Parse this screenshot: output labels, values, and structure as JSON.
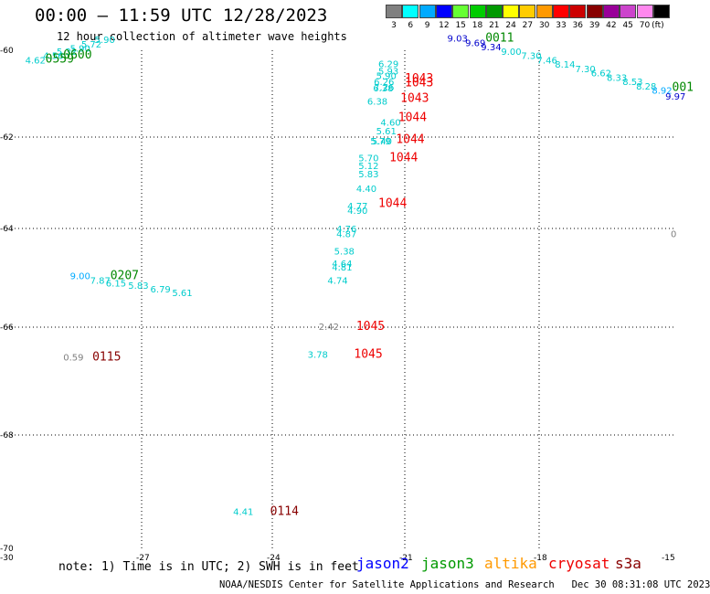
{
  "header": {
    "title": "00:00 – 11:59 UTC 12/28/2023",
    "subtitle": "12 hour collection of altimeter wave heights"
  },
  "legend": {
    "unit": "(ft)",
    "bins": [
      {
        "label": "3",
        "color": "#808080"
      },
      {
        "label": "6",
        "color": "#00ffff"
      },
      {
        "label": "9",
        "color": "#00aaff"
      },
      {
        "label": "12",
        "color": "#0000ff"
      },
      {
        "label": "15",
        "color": "#66ff33"
      },
      {
        "label": "18",
        "color": "#00cc00"
      },
      {
        "label": "21",
        "color": "#009900"
      },
      {
        "label": "24",
        "color": "#ffff00"
      },
      {
        "label": "27",
        "color": "#ffcc00"
      },
      {
        "label": "30",
        "color": "#ff9900"
      },
      {
        "label": "33",
        "color": "#ff0000"
      },
      {
        "label": "36",
        "color": "#cc0000"
      },
      {
        "label": "39",
        "color": "#880000"
      },
      {
        "label": "42",
        "color": "#990099"
      },
      {
        "label": "45",
        "color": "#cc44cc"
      },
      {
        "label": "70",
        "color": "#ff88ee"
      },
      {
        "label": "",
        "color": "#000000"
      }
    ]
  },
  "axes": {
    "lon_ticks": [
      "-30",
      "-27",
      "-24",
      "-21",
      "-18",
      "-15"
    ],
    "lat_ticks": [
      "-60",
      "-62",
      "-64",
      "-66",
      "-68",
      "-70"
    ],
    "lon_range": [
      -30,
      -15
    ],
    "lat_range": [
      -60,
      -70
    ]
  },
  "map_labels": [
    {
      "lat": -60.22,
      "lon": -29.6,
      "text": "4.62",
      "color": "#00cccc"
    },
    {
      "lat": -60.12,
      "lon": -29.2,
      "text": "4.56",
      "color": "#00cccc"
    },
    {
      "lat": -60.02,
      "lon": -28.9,
      "text": "5.32",
      "color": "#00cccc"
    },
    {
      "lat": -59.95,
      "lon": -28.6,
      "text": "5.90",
      "color": "#00cccc"
    },
    {
      "lat": -59.85,
      "lon": -28.35,
      "text": "5.72",
      "color": "#00cccc"
    },
    {
      "lat": -59.75,
      "lon": -28.05,
      "text": "5.90",
      "color": "#00cccc"
    },
    {
      "lat": -60.1,
      "lon": -28.75,
      "text": "0600",
      "color": "#008800",
      "big": true
    },
    {
      "lat": -60.2,
      "lon": -29.15,
      "text": "0559",
      "color": "#008800",
      "big": true
    },
    {
      "lat": -59.72,
      "lon": -20.05,
      "text": "9.03",
      "color": "#0000cc"
    },
    {
      "lat": -59.82,
      "lon": -19.65,
      "text": "9.69",
      "color": "#0000cc"
    },
    {
      "lat": -59.92,
      "lon": -19.3,
      "text": "9.34",
      "color": "#0000cc"
    },
    {
      "lat": -59.72,
      "lon": -19.2,
      "text": "0011",
      "color": "#008800",
      "big": true
    },
    {
      "lat": -60.02,
      "lon": -18.85,
      "text": "9.00",
      "color": "#00cccc"
    },
    {
      "lat": -60.12,
      "lon": -18.4,
      "text": "7.30",
      "color": "#00cccc"
    },
    {
      "lat": -60.22,
      "lon": -18.05,
      "text": "7.46",
      "color": "#00cccc"
    },
    {
      "lat": -60.32,
      "lon": -17.65,
      "text": "8.14",
      "color": "#00cccc"
    },
    {
      "lat": -60.42,
      "lon": -17.2,
      "text": "7.30",
      "color": "#00cccc"
    },
    {
      "lat": -60.52,
      "lon": -16.85,
      "text": "6.62",
      "color": "#00cccc"
    },
    {
      "lat": -60.62,
      "lon": -16.5,
      "text": "8.33",
      "color": "#00cccc"
    },
    {
      "lat": -60.72,
      "lon": -16.15,
      "text": "8.53",
      "color": "#00cccc"
    },
    {
      "lat": -60.82,
      "lon": -15.85,
      "text": "8.28",
      "color": "#00cccc"
    },
    {
      "lat": -60.92,
      "lon": -15.5,
      "text": "8.92",
      "color": "#00aaff"
    },
    {
      "lat": -61.05,
      "lon": -15.2,
      "text": "9.97",
      "color": "#0000cc"
    },
    {
      "lat": -60.85,
      "lon": -15.05,
      "text": "001",
      "color": "#008800",
      "big": true
    },
    {
      "lat": -60.3,
      "lon": -21.6,
      "text": "6.29",
      "color": "#00cccc"
    },
    {
      "lat": -60.47,
      "lon": -21.6,
      "text": "5.93",
      "color": "#00cccc"
    },
    {
      "lat": -60.58,
      "lon": -21.65,
      "text": "5.90",
      "color": "#00cccc"
    },
    {
      "lat": -60.72,
      "lon": -21.7,
      "text": "6.26",
      "color": "#00cccc"
    },
    {
      "lat": -60.84,
      "lon": -21.7,
      "text": "7.26",
      "color": "#00cccc"
    },
    {
      "lat": -60.86,
      "lon": -21.72,
      "text": "6.38",
      "color": "#00cccc"
    },
    {
      "lat": -61.17,
      "lon": -21.85,
      "text": "6.38",
      "color": "#00cccc"
    },
    {
      "lat": -61.65,
      "lon": -21.55,
      "text": "4.60",
      "color": "#00cccc"
    },
    {
      "lat": -61.85,
      "lon": -21.65,
      "text": "5.61",
      "color": "#00cccc"
    },
    {
      "lat": -62.08,
      "lon": -21.75,
      "text": "5.40",
      "color": "#00cccc"
    },
    {
      "lat": -62.08,
      "lon": -21.78,
      "text": "5.79",
      "color": "#00cccc"
    },
    {
      "lat": -62.45,
      "lon": -22.05,
      "text": "5.70",
      "color": "#00cccc"
    },
    {
      "lat": -62.62,
      "lon": -22.05,
      "text": "5.12",
      "color": "#00cccc"
    },
    {
      "lat": -62.8,
      "lon": -22.05,
      "text": "5.83",
      "color": "#00cccc"
    },
    {
      "lat": -63.12,
      "lon": -22.1,
      "text": "4.40",
      "color": "#00cccc"
    },
    {
      "lat": -63.5,
      "lon": -22.3,
      "text": "4.77",
      "color": "#00cccc"
    },
    {
      "lat": -63.6,
      "lon": -22.3,
      "text": "4.90",
      "color": "#00cccc"
    },
    {
      "lat": -64.0,
      "lon": -22.55,
      "text": "4.76",
      "color": "#00cccc"
    },
    {
      "lat": -64.1,
      "lon": -22.55,
      "text": "4.87",
      "color": "#00cccc"
    },
    {
      "lat": -64.45,
      "lon": -22.6,
      "text": "5.38",
      "color": "#00cccc"
    },
    {
      "lat": -64.7,
      "lon": -22.65,
      "text": "4.64",
      "color": "#00cccc"
    },
    {
      "lat": -64.78,
      "lon": -22.65,
      "text": "4.81",
      "color": "#00cccc"
    },
    {
      "lat": -65.05,
      "lon": -22.75,
      "text": "4.74",
      "color": "#00cccc"
    },
    {
      "lat": -60.65,
      "lon": -21.0,
      "text": "1043",
      "color": "#ee0000",
      "big": true
    },
    {
      "lat": -60.75,
      "lon": -21.0,
      "text": "1043",
      "color": "#ee0000",
      "big": true
    },
    {
      "lat": -61.1,
      "lon": -21.1,
      "text": "1043",
      "color": "#ee0000",
      "big": true
    },
    {
      "lat": -61.55,
      "lon": -21.15,
      "text": "1044",
      "color": "#ee0000",
      "big": true
    },
    {
      "lat": -62.05,
      "lon": -21.2,
      "text": "1044",
      "color": "#ee0000",
      "big": true
    },
    {
      "lat": -62.45,
      "lon": -21.35,
      "text": "1044",
      "color": "#ee0000",
      "big": true
    },
    {
      "lat": -63.45,
      "lon": -21.6,
      "text": "1044",
      "color": "#ee0000",
      "big": true
    },
    {
      "lat": -64.95,
      "lon": -28.6,
      "text": "9.00",
      "color": "#00aaff"
    },
    {
      "lat": -65.05,
      "lon": -28.15,
      "text": "7.87",
      "color": "#00cccc"
    },
    {
      "lat": -65.1,
      "lon": -27.8,
      "text": "6.15",
      "color": "#00cccc"
    },
    {
      "lat": -65.15,
      "lon": -27.3,
      "text": "5.83",
      "color": "#00cccc"
    },
    {
      "lat": -65.22,
      "lon": -26.8,
      "text": "6.79",
      "color": "#00cccc"
    },
    {
      "lat": -65.3,
      "lon": -26.3,
      "text": "5.61",
      "color": "#00cccc"
    },
    {
      "lat": -64.95,
      "lon": -27.7,
      "text": "0207",
      "color": "#008800",
      "big": true
    },
    {
      "lat": -65.98,
      "lon": -22.95,
      "text": "2.42",
      "color": "#808080"
    },
    {
      "lat": -65.98,
      "lon": -22.1,
      "text": "1045",
      "color": "#ee0000",
      "big": true
    },
    {
      "lat": -66.5,
      "lon": -23.2,
      "text": "3.78",
      "color": "#00cccc"
    },
    {
      "lat": -66.5,
      "lon": -22.15,
      "text": "1045",
      "color": "#ee0000",
      "big": true
    },
    {
      "lat": -66.55,
      "lon": -28.75,
      "text": "0.59",
      "color": "#808080"
    },
    {
      "lat": -66.55,
      "lon": -28.1,
      "text": "0115",
      "color": "#880000",
      "big": true
    },
    {
      "lat": -69.35,
      "lon": -24.9,
      "text": "4.41",
      "color": "#00cccc"
    },
    {
      "lat": -69.35,
      "lon": -24.05,
      "text": "0114",
      "color": "#880000",
      "big": true
    },
    {
      "lat": -64.1,
      "lon": -15.08,
      "text": "0",
      "color": "#808080"
    }
  ],
  "footer": {
    "note": "note: 1) Time is in UTC; 2) SWH is in feet",
    "satellites": [
      {
        "name": "jason2",
        "color": "#0000ff"
      },
      {
        "name": "jason3",
        "color": "#009900"
      },
      {
        "name": "altika",
        "color": "#ff9900"
      },
      {
        "name": "cryosat",
        "color": "#ee0000"
      },
      {
        "name": "s3a",
        "color": "#880000"
      }
    ],
    "credit": "NOAA/NESDIS Center for Satellite Applications and Research   Dec 30 08:31:08 UTC 2023"
  }
}
